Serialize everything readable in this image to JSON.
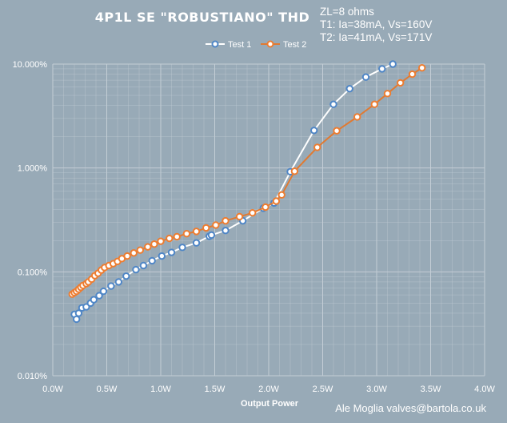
{
  "chart_data": {
    "type": "scatter",
    "title": "4P1L SE \"ROBUSTIANO\"  THD",
    "conditions": [
      "ZL=8 ohms",
      "T1: Ia=38mA, Vs=160V",
      "T2: Ia=41mA, Vs=171V"
    ],
    "xlabel": "Output Power",
    "ylabel": "",
    "xlim": [
      0,
      4
    ],
    "ylim": [
      0.0001,
      0.1
    ],
    "yscale": "log",
    "x_ticks": [
      {
        "v": 0,
        "label": "0.0W"
      },
      {
        "v": 0.5,
        "label": "0.5W"
      },
      {
        "v": 1,
        "label": "1.0W"
      },
      {
        "v": 1.5,
        "label": "1.5W"
      },
      {
        "v": 2,
        "label": "2.0W"
      },
      {
        "v": 2.5,
        "label": "2.5W"
      },
      {
        "v": 3,
        "label": "3.0W"
      },
      {
        "v": 3.5,
        "label": "3.5W"
      },
      {
        "v": 4,
        "label": "4.0W"
      }
    ],
    "y_ticks": [
      {
        "v": 0.0001,
        "label": "0.010%"
      },
      {
        "v": 0.001,
        "label": "0.100%"
      },
      {
        "v": 0.01,
        "label": "1.000%"
      },
      {
        "v": 0.1,
        "label": "10.000%"
      }
    ],
    "grid": true,
    "legend_position": "top-center",
    "series": [
      {
        "name": "Test 1",
        "color": "#4f86c6",
        "points": [
          [
            0.2,
            0.00039
          ],
          [
            0.22,
            0.00035
          ],
          [
            0.24,
            0.0004
          ],
          [
            0.27,
            0.00045
          ],
          [
            0.31,
            0.00046
          ],
          [
            0.35,
            0.0005
          ],
          [
            0.38,
            0.00054
          ],
          [
            0.43,
            0.00059
          ],
          [
            0.47,
            0.00065
          ],
          [
            0.54,
            0.00073
          ],
          [
            0.61,
            0.0008
          ],
          [
            0.68,
            0.00091
          ],
          [
            0.77,
            0.00105
          ],
          [
            0.84,
            0.00115
          ],
          [
            0.92,
            0.00128
          ],
          [
            1.01,
            0.00142
          ],
          [
            1.1,
            0.00154
          ],
          [
            1.2,
            0.00172
          ],
          [
            1.33,
            0.0019
          ],
          [
            1.45,
            0.0022
          ],
          [
            1.47,
            0.00226
          ],
          [
            1.6,
            0.0025
          ],
          [
            1.76,
            0.0031
          ],
          [
            1.95,
            0.0041
          ],
          [
            2.05,
            0.0046
          ],
          [
            2.2,
            0.0092
          ],
          [
            2.42,
            0.023
          ],
          [
            2.6,
            0.041
          ],
          [
            2.75,
            0.058
          ],
          [
            2.9,
            0.075
          ],
          [
            3.05,
            0.09
          ],
          [
            3.15,
            0.1
          ]
        ]
      },
      {
        "name": "Test 2",
        "color": "#ed7d31",
        "points": [
          [
            0.18,
            0.00061
          ],
          [
            0.2,
            0.00063
          ],
          [
            0.22,
            0.00065
          ],
          [
            0.24,
            0.00068
          ],
          [
            0.26,
            0.00071
          ],
          [
            0.28,
            0.00074
          ],
          [
            0.31,
            0.00077
          ],
          [
            0.33,
            0.0008
          ],
          [
            0.36,
            0.00085
          ],
          [
            0.39,
            0.00092
          ],
          [
            0.42,
            0.00097
          ],
          [
            0.45,
            0.00104
          ],
          [
            0.48,
            0.0011
          ],
          [
            0.52,
            0.00115
          ],
          [
            0.56,
            0.0012
          ],
          [
            0.6,
            0.00126
          ],
          [
            0.64,
            0.00134
          ],
          [
            0.69,
            0.00142
          ],
          [
            0.75,
            0.00152
          ],
          [
            0.81,
            0.00162
          ],
          [
            0.88,
            0.00174
          ],
          [
            0.94,
            0.00185
          ],
          [
            1.0,
            0.00197
          ],
          [
            1.08,
            0.0021
          ],
          [
            1.15,
            0.00218
          ],
          [
            1.24,
            0.00233
          ],
          [
            1.33,
            0.00245
          ],
          [
            1.42,
            0.00265
          ],
          [
            1.51,
            0.00282
          ],
          [
            1.6,
            0.0031
          ],
          [
            1.73,
            0.0034
          ],
          [
            1.85,
            0.0037
          ],
          [
            1.97,
            0.0042
          ],
          [
            2.07,
            0.0048
          ],
          [
            2.12,
            0.0055
          ],
          [
            2.24,
            0.0093
          ],
          [
            2.45,
            0.0158
          ],
          [
            2.63,
            0.0228
          ],
          [
            2.82,
            0.031
          ],
          [
            2.98,
            0.041
          ],
          [
            3.1,
            0.052
          ],
          [
            3.22,
            0.066
          ],
          [
            3.33,
            0.08
          ],
          [
            3.42,
            0.092
          ]
        ]
      }
    ]
  },
  "credit": "Ale Moglia valves@bartola.co.uk",
  "colors": {
    "background": "#98aab7",
    "grid": "#c3cdd5",
    "text": "#ffffff"
  }
}
